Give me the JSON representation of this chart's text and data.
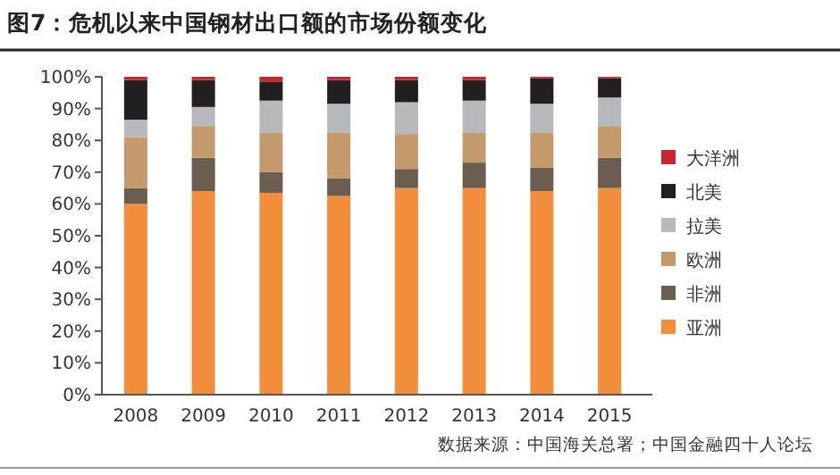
{
  "chart_data": {
    "type": "bar",
    "stacked": true,
    "title": "图7：危机以来中国钢材出口额的市场份额变化",
    "categories": [
      "2008",
      "2009",
      "2010",
      "2011",
      "2012",
      "2013",
      "2014",
      "2015"
    ],
    "series": [
      {
        "name": "亚洲",
        "color": "#f28e3c",
        "values": [
          60,
          64,
          63.5,
          62.5,
          65,
          65,
          64,
          65
        ]
      },
      {
        "name": "非洲",
        "color": "#6b5d50",
        "values": [
          5,
          10.5,
          6.5,
          5.5,
          6,
          8,
          7.5,
          9.5
        ]
      },
      {
        "name": "欧洲",
        "color": "#c49a6c",
        "values": [
          16,
          10,
          12.5,
          14.5,
          11,
          9.5,
          11,
          10
        ]
      },
      {
        "name": "拉美",
        "color": "#b8b9bd",
        "values": [
          5.5,
          6,
          10,
          9,
          10,
          10,
          9,
          9
        ]
      },
      {
        "name": "北美",
        "color": "#231f20",
        "values": [
          12.5,
          8.5,
          6,
          7.5,
          7,
          6.5,
          8,
          6
        ]
      },
      {
        "name": "大洋洲",
        "color": "#c8262d",
        "values": [
          1,
          1,
          1.5,
          1,
          1,
          1,
          0.5,
          0.5
        ]
      }
    ],
    "ylim": [
      0,
      100
    ],
    "yticks": [
      {
        "value": 0,
        "label": "0%"
      },
      {
        "value": 10,
        "label": "10%"
      },
      {
        "value": 20,
        "label": "20%"
      },
      {
        "value": 30,
        "label": "30%"
      },
      {
        "value": 40,
        "label": "40%"
      },
      {
        "value": 50,
        "label": "50%"
      },
      {
        "value": 60,
        "label": "60%"
      },
      {
        "value": 70,
        "label": "70%"
      },
      {
        "value": 80,
        "label": "80%"
      },
      {
        "value": 90,
        "label": "90%"
      },
      {
        "value": 100,
        "label": "100%"
      }
    ],
    "legend": "right",
    "grid": false,
    "annotations": [
      "数据来源：中国海关总署；中国金融四十人论坛"
    ]
  }
}
